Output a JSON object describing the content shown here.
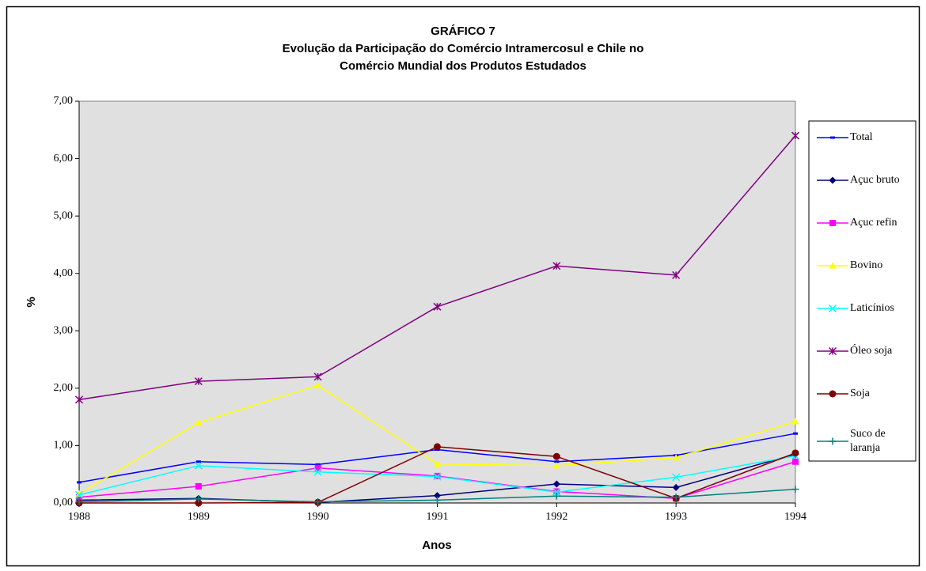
{
  "chart_data": {
    "type": "line",
    "title": [
      "GRÁFICO 7",
      "Evolução da Participação do Comércio Intramercosul e Chile no",
      "Comércio Mundial dos Produtos Estudados"
    ],
    "x_label": "Anos",
    "y_label": "%",
    "x": [
      1988,
      1989,
      1990,
      1991,
      1992,
      1993,
      1994
    ],
    "xlim": [
      1988,
      1994
    ],
    "xticks": [
      1988,
      1989,
      1990,
      1991,
      1992,
      1993,
      1994
    ],
    "ylim": [
      0,
      7
    ],
    "yticks": [
      {
        "value": 0,
        "label": "0,00"
      },
      {
        "value": 1,
        "label": "1,00"
      },
      {
        "value": 2,
        "label": "2,00"
      },
      {
        "value": 3,
        "label": "3,00"
      },
      {
        "value": 4,
        "label": "4,00"
      },
      {
        "value": 5,
        "label": "5,00"
      },
      {
        "value": 6,
        "label": "6,00"
      },
      {
        "value": 7,
        "label": "7,00"
      }
    ],
    "legend": "right",
    "series": [
      {
        "name": "Total",
        "color": "#0000ff",
        "marker": "dash",
        "values": [
          0.36,
          0.72,
          0.67,
          0.93,
          0.72,
          0.83,
          1.21
        ]
      },
      {
        "name": "Açuc bruto",
        "color": "#000080",
        "marker": "diamond",
        "values": [
          0.05,
          0.08,
          0.01,
          0.13,
          0.33,
          0.27,
          0.85
        ]
      },
      {
        "name": "Açuc refin",
        "color": "#ff00ff",
        "marker": "square",
        "values": [
          0.1,
          0.29,
          0.61,
          0.47,
          0.2,
          0.08,
          0.72
        ]
      },
      {
        "name": "Bovino",
        "color": "#ffff00",
        "marker": "triangle",
        "values": [
          0.16,
          1.4,
          2.05,
          0.68,
          0.65,
          0.79,
          1.42
        ]
      },
      {
        "name": "Laticínios",
        "color": "#00ffff",
        "marker": "x",
        "values": [
          0.14,
          0.65,
          0.54,
          0.46,
          0.19,
          0.45,
          0.82
        ]
      },
      {
        "name": "Óleo soja",
        "color": "#800080",
        "marker": "star",
        "values": [
          1.8,
          2.12,
          2.2,
          3.42,
          4.13,
          3.97,
          6.4
        ]
      },
      {
        "name": "Soja",
        "color": "#800000",
        "marker": "circle",
        "values": [
          0.0,
          0.0,
          0.01,
          0.98,
          0.81,
          0.08,
          0.87
        ]
      },
      {
        "name": "Suco de laranja",
        "color": "#008080",
        "marker": "plus",
        "values": [
          0.02,
          0.07,
          0.02,
          0.05,
          0.12,
          0.1,
          0.24
        ]
      }
    ]
  }
}
